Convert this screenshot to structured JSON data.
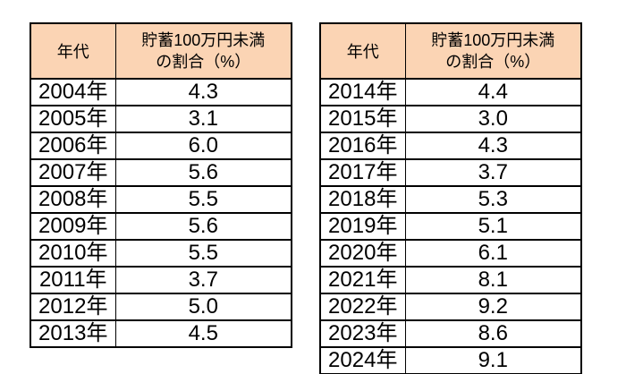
{
  "style": {
    "header_bg": "#FBD4B4",
    "border_color": "#000000",
    "text_color": "#000000",
    "page_bg": "#ffffff"
  },
  "tables": [
    {
      "name": "savings-under-1m-yen-2004-2013",
      "year_header": "年代",
      "value_header_line1": "貯蓄100万円未満",
      "value_header_line2": "の割合（%）",
      "rows": [
        {
          "year": "2004年",
          "value": "4.3"
        },
        {
          "year": "2005年",
          "value": "3.1"
        },
        {
          "year": "2006年",
          "value": "6.0"
        },
        {
          "year": "2007年",
          "value": "5.6"
        },
        {
          "year": "2008年",
          "value": "5.5"
        },
        {
          "year": "2009年",
          "value": "5.6"
        },
        {
          "year": "2010年",
          "value": "5.5"
        },
        {
          "year": "2011年",
          "value": "3.7"
        },
        {
          "year": "2012年",
          "value": "5.0"
        },
        {
          "year": "2013年",
          "value": "4.5"
        }
      ]
    },
    {
      "name": "savings-under-1m-yen-2014-2024",
      "year_header": "年代",
      "value_header_line1": "貯蓄100万円未満",
      "value_header_line2": "の割合（%）",
      "rows": [
        {
          "year": "2014年",
          "value": "4.4"
        },
        {
          "year": "2015年",
          "value": "3.0"
        },
        {
          "year": "2016年",
          "value": "4.3"
        },
        {
          "year": "2017年",
          "value": "3.7"
        },
        {
          "year": "2018年",
          "value": "5.3"
        },
        {
          "year": "2019年",
          "value": "5.1"
        },
        {
          "year": "2020年",
          "value": "6.1"
        },
        {
          "year": "2021年",
          "value": "8.1"
        },
        {
          "year": "2022年",
          "value": "9.2"
        },
        {
          "year": "2023年",
          "value": "8.6"
        },
        {
          "year": "2024年",
          "value": "9.1"
        }
      ]
    }
  ],
  "chart_data": [
    {
      "type": "table",
      "title": "貯蓄100万円未満の割合（%） 2004-2013",
      "columns": [
        "年代",
        "貯蓄100万円未満の割合（%）"
      ],
      "rows": [
        [
          "2004年",
          4.3
        ],
        [
          "2005年",
          3.1
        ],
        [
          "2006年",
          6.0
        ],
        [
          "2007年",
          5.6
        ],
        [
          "2008年",
          5.5
        ],
        [
          "2009年",
          5.6
        ],
        [
          "2010年",
          5.5
        ],
        [
          "2011年",
          3.7
        ],
        [
          "2012年",
          5.0
        ],
        [
          "2013年",
          4.5
        ]
      ]
    },
    {
      "type": "table",
      "title": "貯蓄100万円未満の割合（%） 2014-2024",
      "columns": [
        "年代",
        "貯蓄100万円未満の割合（%）"
      ],
      "rows": [
        [
          "2014年",
          4.4
        ],
        [
          "2015年",
          3.0
        ],
        [
          "2016年",
          4.3
        ],
        [
          "2017年",
          3.7
        ],
        [
          "2018年",
          5.3
        ],
        [
          "2019年",
          5.1
        ],
        [
          "2020年",
          6.1
        ],
        [
          "2021年",
          8.1
        ],
        [
          "2022年",
          9.2
        ],
        [
          "2023年",
          8.6
        ],
        [
          "2024年",
          9.1
        ]
      ]
    }
  ]
}
